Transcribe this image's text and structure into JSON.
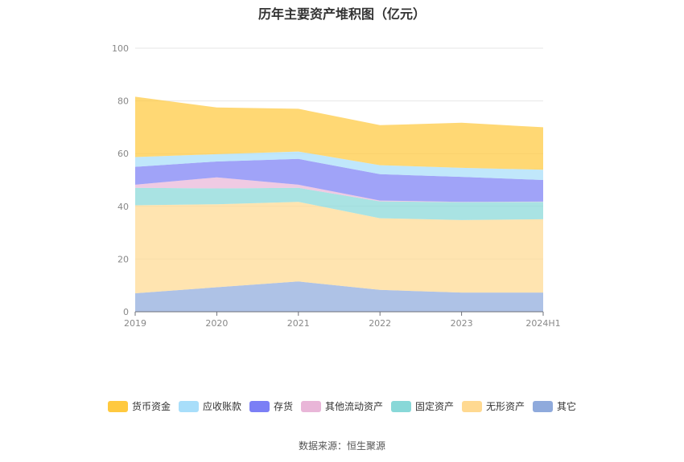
{
  "chart_data": {
    "type": "area",
    "stacked": true,
    "title": "历年主要资产堆积图（亿元）",
    "xlabel": "",
    "ylabel": "",
    "ylim": [
      0,
      100
    ],
    "yticks": [
      0,
      20,
      40,
      60,
      80,
      100
    ],
    "categories": [
      "2019",
      "2020",
      "2021",
      "2022",
      "2023",
      "2024H1"
    ],
    "series": [
      {
        "name": "其它",
        "color": "#8faadc",
        "values": [
          7.0,
          9.3,
          11.5,
          8.3,
          7.3,
          7.3
        ]
      },
      {
        "name": "无形资产",
        "color": "#ffd991",
        "values": [
          33.4,
          31.5,
          30.2,
          27.2,
          27.5,
          27.8
        ]
      },
      {
        "name": "固定资产",
        "color": "#88d8d8",
        "values": [
          6.6,
          6.0,
          5.3,
          6.4,
          6.8,
          6.6
        ]
      },
      {
        "name": "其他流动资产",
        "color": "#e9b6d8",
        "values": [
          1.2,
          4.2,
          1.2,
          0.3,
          0.1,
          0.1
        ]
      },
      {
        "name": "存货",
        "color": "#7b7ff5",
        "values": [
          6.8,
          6.0,
          9.8,
          10.0,
          9.5,
          8.2
        ]
      },
      {
        "name": "应收账款",
        "color": "#a8defa",
        "values": [
          3.7,
          2.8,
          2.8,
          3.4,
          3.4,
          3.9
        ]
      },
      {
        "name": "货币资金",
        "color": "#ffc93f",
        "values": [
          22.9,
          17.7,
          16.2,
          15.2,
          17.1,
          16.1
        ]
      }
    ],
    "legend_order": [
      "货币资金",
      "应收账款",
      "存货",
      "其他流动资产",
      "固定资产",
      "无形资产",
      "其它"
    ]
  },
  "source_text": "数据来源：恒生聚源"
}
